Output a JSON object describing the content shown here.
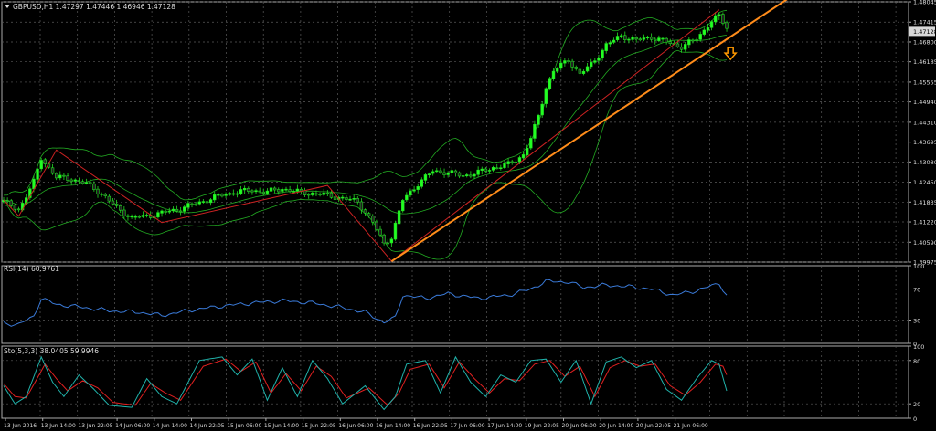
{
  "header": {
    "symbol_info": "GBPUSD,H1  1.47297 1.47446 1.46946 1.47128"
  },
  "colors": {
    "background": "#000000",
    "grid": "#5a5a5a",
    "border": "#aaaaaa",
    "axis_text": "#dddddd",
    "bull_candle": "#22ff22",
    "bear_candle": "#222222",
    "wick": "#22dd22",
    "bollinger": "#22aa22",
    "zigzag": "#cc2222",
    "trendline": "#ff8c1a",
    "arrow": "#ff9900",
    "price_label_bg": "#d8d8d8",
    "rsi_line": "#3a7ad8",
    "stoch_main": "#20b2aa",
    "stoch_signal": "#e02020"
  },
  "chart_data": [
    {
      "type": "candlestick",
      "panel": "price",
      "title": "GBPUSD,H1",
      "ohlc_last": {
        "open": 1.47297,
        "high": 1.47446,
        "low": 1.46946,
        "close": 1.47128
      },
      "ylim": [
        1.39975,
        1.48045
      ],
      "y_ticks": [
        "1.48045",
        "1.47415",
        "1.46800",
        "1.46185",
        "1.45555",
        "1.44940",
        "1.44310",
        "1.43695",
        "1.43080",
        "1.42450",
        "1.41835",
        "1.41220",
        "1.40590",
        "1.39975"
      ],
      "current_price_label": "1.47128",
      "x_ticks": [
        "13 Jun 2016",
        "13 Jun 14:00",
        "13 Jun 22:05",
        "14 Jun 06:00",
        "14 Jun 14:00",
        "14 Jun 22:05",
        "15 Jun 06:00",
        "15 Jun 14:00",
        "15 Jun 22:05",
        "16 Jun 06:00",
        "16 Jun 14:00",
        "16 Jun 22:05",
        "17 Jun 06:00",
        "17 Jun 14:00",
        "19 Jun 22:05",
        "20 Jun 06:00",
        "20 Jun 14:00",
        "20 Jun 22:05",
        "21 Jun 06:00"
      ],
      "anchors": [
        {
          "i": 0,
          "v": 1.4185
        },
        {
          "i": 4,
          "v": 1.416
        },
        {
          "i": 8,
          "v": 1.4245
        },
        {
          "i": 10,
          "v": 1.432
        },
        {
          "i": 12,
          "v": 1.429
        },
        {
          "i": 14,
          "v": 1.426
        },
        {
          "i": 18,
          "v": 1.4255
        },
        {
          "i": 22,
          "v": 1.424
        },
        {
          "i": 26,
          "v": 1.421
        },
        {
          "i": 30,
          "v": 1.4165
        },
        {
          "i": 34,
          "v": 1.4135
        },
        {
          "i": 38,
          "v": 1.414
        },
        {
          "i": 42,
          "v": 1.415
        },
        {
          "i": 46,
          "v": 1.416
        },
        {
          "i": 50,
          "v": 1.4175
        },
        {
          "i": 54,
          "v": 1.419
        },
        {
          "i": 58,
          "v": 1.4205
        },
        {
          "i": 62,
          "v": 1.4215
        },
        {
          "i": 66,
          "v": 1.422
        },
        {
          "i": 70,
          "v": 1.4215
        },
        {
          "i": 74,
          "v": 1.4225
        },
        {
          "i": 78,
          "v": 1.4215
        },
        {
          "i": 82,
          "v": 1.421
        },
        {
          "i": 86,
          "v": 1.4205
        },
        {
          "i": 90,
          "v": 1.4195
        },
        {
          "i": 94,
          "v": 1.4185
        },
        {
          "i": 98,
          "v": 1.412
        },
        {
          "i": 101,
          "v": 1.4055
        },
        {
          "i": 103,
          "v": 1.4075
        },
        {
          "i": 106,
          "v": 1.419
        },
        {
          "i": 110,
          "v": 1.424
        },
        {
          "i": 114,
          "v": 1.428
        },
        {
          "i": 118,
          "v": 1.4275
        },
        {
          "i": 122,
          "v": 1.4265
        },
        {
          "i": 126,
          "v": 1.4275
        },
        {
          "i": 130,
          "v": 1.429
        },
        {
          "i": 134,
          "v": 1.43
        },
        {
          "i": 138,
          "v": 1.433
        },
        {
          "i": 140,
          "v": 1.438
        },
        {
          "i": 142,
          "v": 1.445
        },
        {
          "i": 144,
          "v": 1.454
        },
        {
          "i": 146,
          "v": 1.459
        },
        {
          "i": 150,
          "v": 1.4625
        },
        {
          "i": 153,
          "v": 1.458
        },
        {
          "i": 156,
          "v": 1.461
        },
        {
          "i": 160,
          "v": 1.467
        },
        {
          "i": 164,
          "v": 1.47
        },
        {
          "i": 168,
          "v": 1.4685
        },
        {
          "i": 172,
          "v": 1.4695
        },
        {
          "i": 176,
          "v": 1.468
        },
        {
          "i": 180,
          "v": 1.4665
        },
        {
          "i": 184,
          "v": 1.469
        },
        {
          "i": 188,
          "v": 1.4745
        },
        {
          "i": 190,
          "v": 1.476
        },
        {
          "i": 192,
          "v": 1.4725
        }
      ],
      "zigzag": [
        {
          "i": 0,
          "v": 1.419
        },
        {
          "i": 4,
          "v": 1.414
        },
        {
          "i": 14,
          "v": 1.4345
        },
        {
          "i": 42,
          "v": 1.412
        },
        {
          "i": 86,
          "v": 1.4235
        },
        {
          "i": 103,
          "v": 1.4
        },
        {
          "i": 190,
          "v": 1.478
        }
      ],
      "trendline": {
        "from": {
          "i": 103,
          "v": 1.4
        },
        "to": {
          "i": 209,
          "v": 1.482
        }
      },
      "signal_arrow": {
        "i": 193,
        "v": 1.464,
        "direction": "down"
      }
    },
    {
      "type": "line",
      "panel": "rsi",
      "title": "RSI(14) 60.9761",
      "ylim": [
        0,
        100
      ],
      "y_ticks": [
        "100",
        "70",
        "30",
        "0"
      ],
      "levels": [
        70,
        30
      ],
      "anchors": [
        {
          "i": 0,
          "v": 26
        },
        {
          "i": 4,
          "v": 24
        },
        {
          "i": 8,
          "v": 35
        },
        {
          "i": 10,
          "v": 58
        },
        {
          "i": 14,
          "v": 50
        },
        {
          "i": 20,
          "v": 47
        },
        {
          "i": 28,
          "v": 42
        },
        {
          "i": 36,
          "v": 40
        },
        {
          "i": 42,
          "v": 36
        },
        {
          "i": 50,
          "v": 43
        },
        {
          "i": 58,
          "v": 48
        },
        {
          "i": 66,
          "v": 52
        },
        {
          "i": 74,
          "v": 55
        },
        {
          "i": 82,
          "v": 52
        },
        {
          "i": 90,
          "v": 46
        },
        {
          "i": 96,
          "v": 40
        },
        {
          "i": 101,
          "v": 27
        },
        {
          "i": 104,
          "v": 33
        },
        {
          "i": 106,
          "v": 62
        },
        {
          "i": 112,
          "v": 58
        },
        {
          "i": 118,
          "v": 64
        },
        {
          "i": 126,
          "v": 58
        },
        {
          "i": 134,
          "v": 62
        },
        {
          "i": 140,
          "v": 70
        },
        {
          "i": 144,
          "v": 80
        },
        {
          "i": 150,
          "v": 79
        },
        {
          "i": 154,
          "v": 72
        },
        {
          "i": 160,
          "v": 75
        },
        {
          "i": 166,
          "v": 73
        },
        {
          "i": 172,
          "v": 70
        },
        {
          "i": 178,
          "v": 62
        },
        {
          "i": 184,
          "v": 68
        },
        {
          "i": 188,
          "v": 74
        },
        {
          "i": 190,
          "v": 78
        },
        {
          "i": 192,
          "v": 61
        }
      ]
    },
    {
      "type": "line",
      "panel": "stochastic",
      "title": "Sto(5,3,3) 38.0405 59.9946",
      "ylim": [
        0,
        100
      ],
      "y_ticks": [
        "100",
        "80",
        "20",
        "0"
      ],
      "levels": [
        80,
        20
      ],
      "series": [
        {
          "name": "%K",
          "anchors": [
            {
              "i": 0,
              "v": 45
            },
            {
              "i": 3,
              "v": 20
            },
            {
              "i": 6,
              "v": 30
            },
            {
              "i": 10,
              "v": 85
            },
            {
              "i": 13,
              "v": 50
            },
            {
              "i": 16,
              "v": 30
            },
            {
              "i": 20,
              "v": 60
            },
            {
              "i": 24,
              "v": 40
            },
            {
              "i": 28,
              "v": 18
            },
            {
              "i": 34,
              "v": 15
            },
            {
              "i": 38,
              "v": 55
            },
            {
              "i": 42,
              "v": 30
            },
            {
              "i": 46,
              "v": 20
            },
            {
              "i": 52,
              "v": 80
            },
            {
              "i": 58,
              "v": 85
            },
            {
              "i": 62,
              "v": 60
            },
            {
              "i": 66,
              "v": 82
            },
            {
              "i": 70,
              "v": 25
            },
            {
              "i": 74,
              "v": 70
            },
            {
              "i": 78,
              "v": 30
            },
            {
              "i": 82,
              "v": 80
            },
            {
              "i": 86,
              "v": 55
            },
            {
              "i": 90,
              "v": 20
            },
            {
              "i": 96,
              "v": 45
            },
            {
              "i": 101,
              "v": 12
            },
            {
              "i": 104,
              "v": 30
            },
            {
              "i": 107,
              "v": 75
            },
            {
              "i": 112,
              "v": 80
            },
            {
              "i": 116,
              "v": 35
            },
            {
              "i": 120,
              "v": 85
            },
            {
              "i": 124,
              "v": 50
            },
            {
              "i": 128,
              "v": 30
            },
            {
              "i": 132,
              "v": 60
            },
            {
              "i": 136,
              "v": 50
            },
            {
              "i": 140,
              "v": 80
            },
            {
              "i": 144,
              "v": 82
            },
            {
              "i": 148,
              "v": 50
            },
            {
              "i": 152,
              "v": 80
            },
            {
              "i": 156,
              "v": 20
            },
            {
              "i": 160,
              "v": 78
            },
            {
              "i": 164,
              "v": 85
            },
            {
              "i": 168,
              "v": 70
            },
            {
              "i": 172,
              "v": 80
            },
            {
              "i": 176,
              "v": 40
            },
            {
              "i": 180,
              "v": 25
            },
            {
              "i": 184,
              "v": 55
            },
            {
              "i": 188,
              "v": 80
            },
            {
              "i": 190,
              "v": 75
            },
            {
              "i": 192,
              "v": 38
            }
          ]
        },
        {
          "name": "%D",
          "anchors": [
            {
              "i": 0,
              "v": 48
            },
            {
              "i": 3,
              "v": 30
            },
            {
              "i": 6,
              "v": 28
            },
            {
              "i": 11,
              "v": 75
            },
            {
              "i": 14,
              "v": 55
            },
            {
              "i": 17,
              "v": 38
            },
            {
              "i": 21,
              "v": 52
            },
            {
              "i": 25,
              "v": 42
            },
            {
              "i": 29,
              "v": 22
            },
            {
              "i": 35,
              "v": 18
            },
            {
              "i": 39,
              "v": 48
            },
            {
              "i": 43,
              "v": 35
            },
            {
              "i": 47,
              "v": 25
            },
            {
              "i": 53,
              "v": 72
            },
            {
              "i": 59,
              "v": 82
            },
            {
              "i": 63,
              "v": 65
            },
            {
              "i": 67,
              "v": 78
            },
            {
              "i": 71,
              "v": 35
            },
            {
              "i": 75,
              "v": 62
            },
            {
              "i": 79,
              "v": 38
            },
            {
              "i": 83,
              "v": 72
            },
            {
              "i": 87,
              "v": 58
            },
            {
              "i": 91,
              "v": 28
            },
            {
              "i": 97,
              "v": 42
            },
            {
              "i": 102,
              "v": 18
            },
            {
              "i": 105,
              "v": 35
            },
            {
              "i": 108,
              "v": 68
            },
            {
              "i": 113,
              "v": 75
            },
            {
              "i": 117,
              "v": 42
            },
            {
              "i": 121,
              "v": 78
            },
            {
              "i": 125,
              "v": 55
            },
            {
              "i": 129,
              "v": 35
            },
            {
              "i": 133,
              "v": 55
            },
            {
              "i": 137,
              "v": 52
            },
            {
              "i": 141,
              "v": 75
            },
            {
              "i": 145,
              "v": 80
            },
            {
              "i": 149,
              "v": 58
            },
            {
              "i": 153,
              "v": 72
            },
            {
              "i": 157,
              "v": 30
            },
            {
              "i": 161,
              "v": 70
            },
            {
              "i": 165,
              "v": 80
            },
            {
              "i": 169,
              "v": 72
            },
            {
              "i": 173,
              "v": 75
            },
            {
              "i": 177,
              "v": 45
            },
            {
              "i": 181,
              "v": 32
            },
            {
              "i": 185,
              "v": 50
            },
            {
              "i": 189,
              "v": 75
            },
            {
              "i": 191,
              "v": 72
            },
            {
              "i": 192,
              "v": 60
            }
          ]
        }
      ]
    }
  ]
}
